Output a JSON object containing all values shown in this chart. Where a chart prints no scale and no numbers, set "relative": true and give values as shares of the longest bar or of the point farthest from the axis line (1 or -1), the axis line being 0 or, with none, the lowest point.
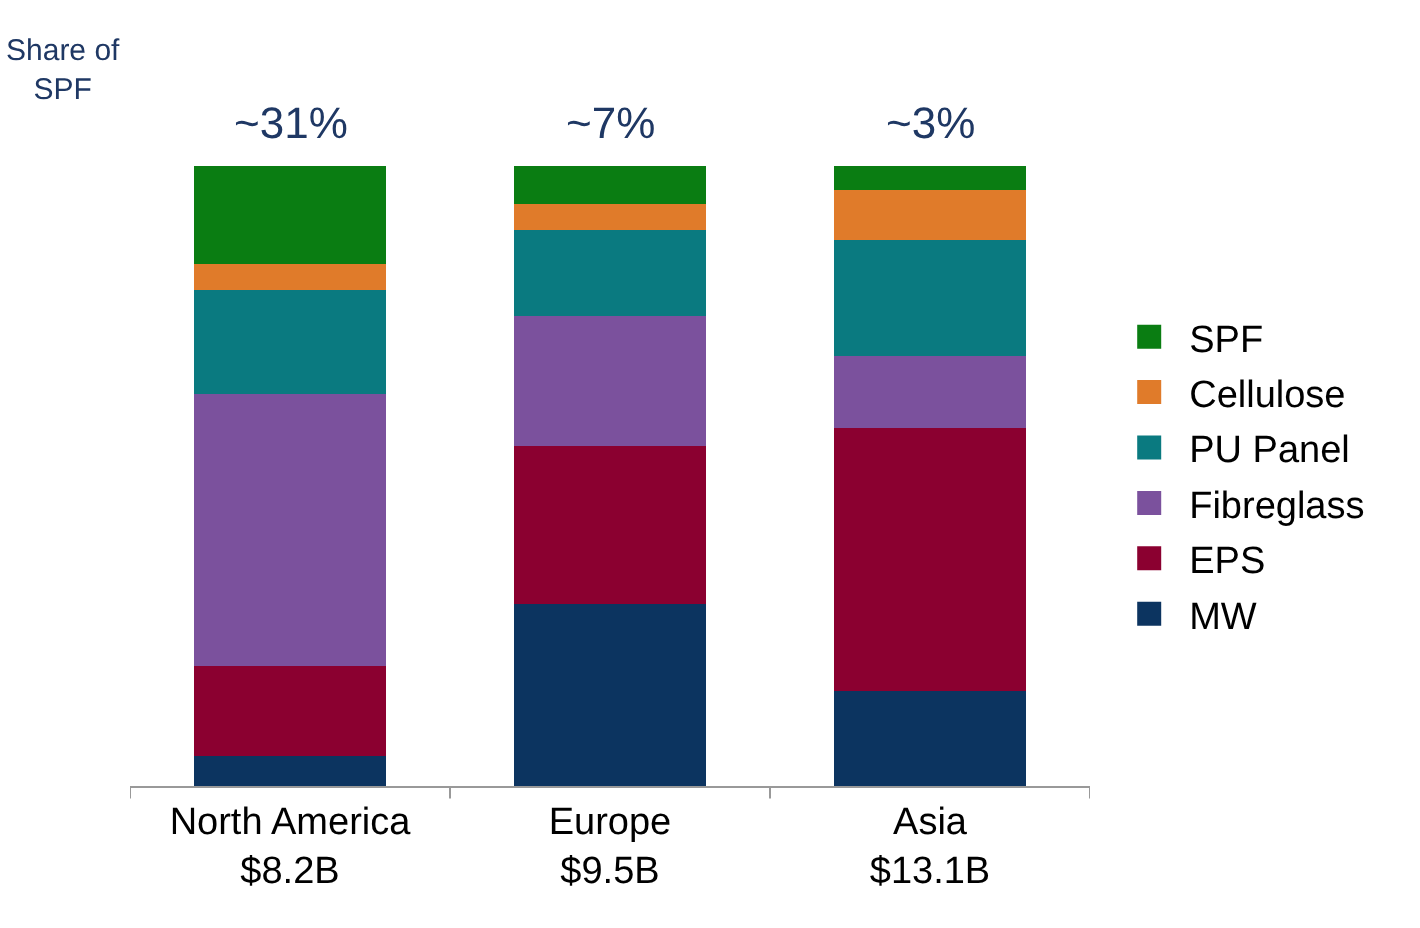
{
  "chart_data": {
    "type": "bar",
    "stacked": true,
    "relative": true,
    "legend": "right",
    "categories": [
      "North America\n$8.2B",
      "Europe\n$9.5B",
      "Asia\n$13.1B"
    ],
    "series": [
      {
        "name": "MW",
        "color": "#0c3460",
        "values": [
          0.048,
          0.293,
          0.154
        ]
      },
      {
        "name": "EPS",
        "color": "#8b0030",
        "values": [
          0.145,
          0.255,
          0.423
        ]
      },
      {
        "name": "Fibreglass",
        "color": "#7b519d",
        "values": [
          0.439,
          0.21,
          0.116
        ]
      },
      {
        "name": "PU Panel",
        "color": "#0a7a80",
        "values": [
          0.168,
          0.139,
          0.187
        ]
      },
      {
        "name": "Cellulose",
        "color": "#e07b2a",
        "values": [
          0.042,
          0.042,
          0.081
        ]
      },
      {
        "name": "SPF",
        "color": "#0a7d12",
        "values": [
          0.158,
          0.061,
          0.039
        ]
      }
    ],
    "annotations": [
      "Share of\nSPF",
      "~31%",
      "~7%",
      "~3%"
    ]
  }
}
